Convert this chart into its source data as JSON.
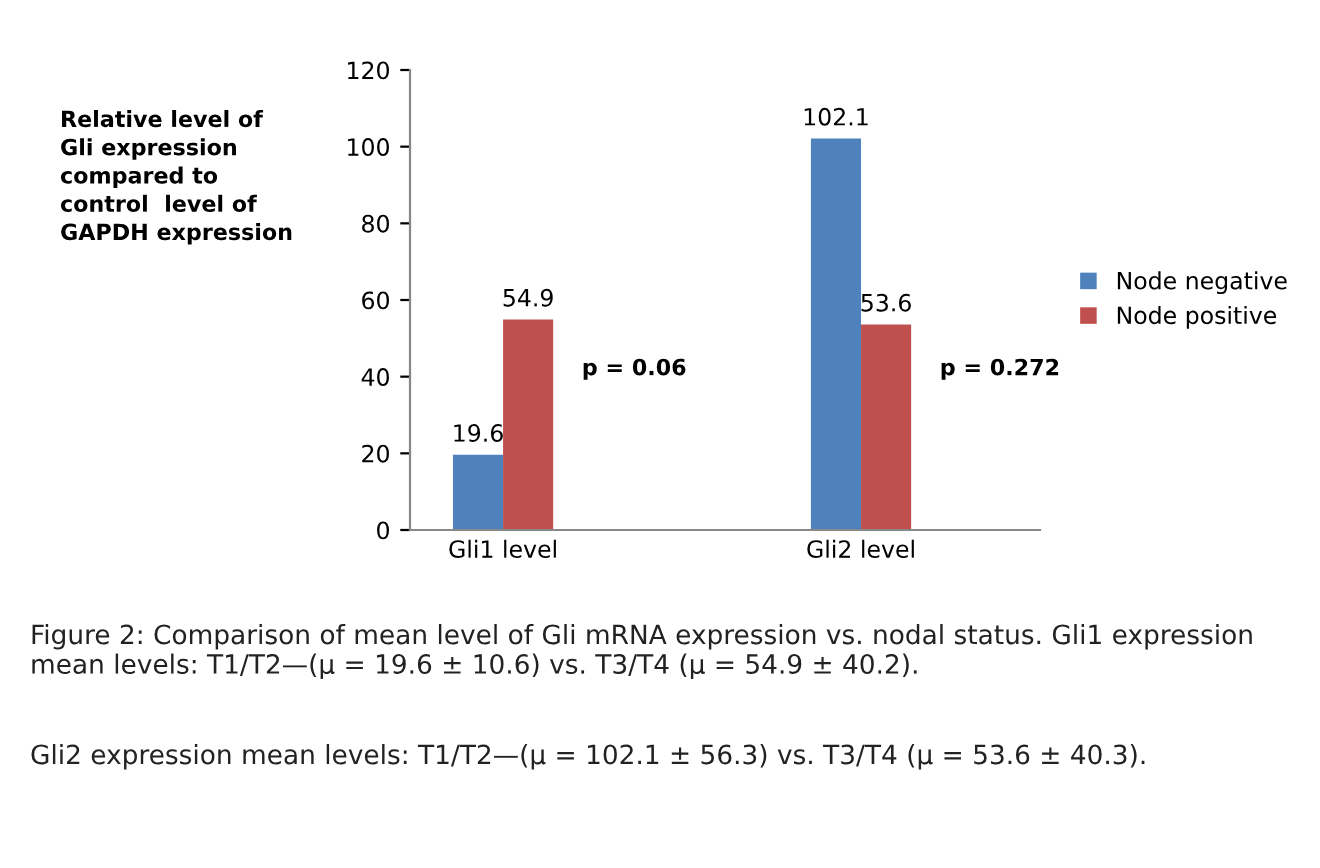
{
  "chart_data": {
    "type": "bar",
    "ylabel": "Relative level of\nGli expression\ncompared to\ncontrol  level of\nGAPDH expression",
    "categories": [
      "Gli1 level",
      "Gli2 level"
    ],
    "series": [
      {
        "name": "Node negative",
        "color": "#4f81bd",
        "values": [
          19.6,
          102.1
        ]
      },
      {
        "name": "Node positive",
        "color": "#c0504d",
        "values": [
          54.9,
          53.6
        ]
      }
    ],
    "ylim": [
      0,
      120
    ],
    "yticks": [
      0,
      20,
      40,
      60,
      80,
      100,
      120
    ],
    "grid": false,
    "legend": "right",
    "data_labels": true,
    "annotations": [
      "p = 0.06",
      "p = 0.272",
      "Figure 2: Comparison of mean level of Gli mRNA expression vs. nodal status. Gli1 expression mean levels: T1/T2—(μ = 19.6 ± 10.6) vs. T3/T4 (μ = 54.9 ± 40.2).",
      "Gli2 expression mean levels: T1/T2—(μ = 102.1 ± 56.3) vs. T3/T4 (μ = 53.6 ± 40.3)."
    ]
  }
}
